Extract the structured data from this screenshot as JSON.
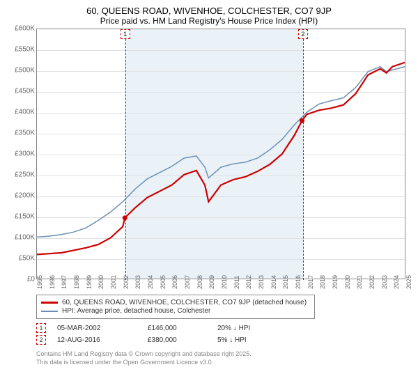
{
  "title": "60, QUEENS ROAD, WIVENHOE, COLCHESTER, CO7 9JP",
  "subtitle": "Price paid vs. HM Land Registry's House Price Index (HPI)",
  "chart": {
    "type": "line",
    "x_range": [
      1995,
      2025
    ],
    "y_range": [
      0,
      600000
    ],
    "y_tick_step": 50000,
    "y_ticks": [
      "£0",
      "£50K",
      "£100K",
      "£150K",
      "£200K",
      "£250K",
      "£300K",
      "£350K",
      "£400K",
      "£450K",
      "£500K",
      "£550K",
      "£600K"
    ],
    "x_ticks": [
      1995,
      1996,
      1997,
      1998,
      1999,
      2000,
      2001,
      2002,
      2003,
      2004,
      2005,
      2006,
      2007,
      2008,
      2009,
      2010,
      2011,
      2012,
      2013,
      2014,
      2015,
      2016,
      2017,
      2018,
      2019,
      2020,
      2021,
      2022,
      2023,
      2024,
      2025
    ],
    "shade_x": [
      2002.17,
      2016.62
    ],
    "background_color": "#ffffff",
    "grid_color": "#e0e0e0",
    "border_color": "#888888",
    "shade_color": "#eaf2f8",
    "series": [
      {
        "name": "property",
        "label": "60, QUEENS ROAD, WIVENHOE, COLCHESTER, CO7 9JP (detached house)",
        "color": "#cc0000",
        "width": 2.2,
        "data": [
          [
            1995,
            58000
          ],
          [
            1996,
            60000
          ],
          [
            1997,
            62000
          ],
          [
            1998,
            68000
          ],
          [
            1999,
            74000
          ],
          [
            2000,
            82000
          ],
          [
            2001,
            98000
          ],
          [
            2002,
            125000
          ],
          [
            2002.17,
            146000
          ],
          [
            2003,
            170000
          ],
          [
            2004,
            195000
          ],
          [
            2005,
            210000
          ],
          [
            2006,
            225000
          ],
          [
            2007,
            250000
          ],
          [
            2008,
            260000
          ],
          [
            2008.7,
            225000
          ],
          [
            2009,
            185000
          ],
          [
            2009.5,
            205000
          ],
          [
            2010,
            225000
          ],
          [
            2011,
            238000
          ],
          [
            2012,
            245000
          ],
          [
            2013,
            258000
          ],
          [
            2014,
            275000
          ],
          [
            2015,
            300000
          ],
          [
            2016,
            345000
          ],
          [
            2016.62,
            380000
          ],
          [
            2017,
            395000
          ],
          [
            2018,
            405000
          ],
          [
            2019,
            410000
          ],
          [
            2020,
            418000
          ],
          [
            2021,
            445000
          ],
          [
            2022,
            490000
          ],
          [
            2023,
            505000
          ],
          [
            2023.5,
            495000
          ],
          [
            2024,
            510000
          ],
          [
            2025,
            520000
          ]
        ]
      },
      {
        "name": "hpi",
        "label": "HPI: Average price, detached house, Colchester",
        "color": "#6b8fb5",
        "width": 1.5,
        "data": [
          [
            1995,
            100000
          ],
          [
            1996,
            102000
          ],
          [
            1997,
            106000
          ],
          [
            1998,
            112000
          ],
          [
            1999,
            122000
          ],
          [
            2000,
            140000
          ],
          [
            2001,
            160000
          ],
          [
            2002,
            185000
          ],
          [
            2003,
            215000
          ],
          [
            2004,
            240000
          ],
          [
            2005,
            255000
          ],
          [
            2006,
            270000
          ],
          [
            2007,
            290000
          ],
          [
            2008,
            295000
          ],
          [
            2008.7,
            268000
          ],
          [
            2009,
            242000
          ],
          [
            2009.5,
            255000
          ],
          [
            2010,
            268000
          ],
          [
            2011,
            276000
          ],
          [
            2012,
            280000
          ],
          [
            2013,
            290000
          ],
          [
            2014,
            310000
          ],
          [
            2015,
            335000
          ],
          [
            2016,
            370000
          ],
          [
            2017,
            400000
          ],
          [
            2018,
            420000
          ],
          [
            2019,
            428000
          ],
          [
            2020,
            435000
          ],
          [
            2021,
            460000
          ],
          [
            2022,
            498000
          ],
          [
            2023,
            510000
          ],
          [
            2023.5,
            498000
          ],
          [
            2024,
            502000
          ],
          [
            2025,
            510000
          ]
        ]
      }
    ],
    "markers": [
      {
        "label": "1",
        "x": 2002.17,
        "y_top": true,
        "date": "05-MAR-2002",
        "price": "£146,000",
        "delta": "20% ↓ HPI",
        "dot_y": 146000
      },
      {
        "label": "2",
        "x": 2016.62,
        "y_top": true,
        "date": "12-AUG-2016",
        "price": "£380,000",
        "delta": "5% ↓ HPI",
        "dot_y": 380000
      }
    ]
  },
  "footer": {
    "line1": "Contains HM Land Registry data © Crown copyright and database right 2025.",
    "line2": "This data is licensed under the Open Government Licence v3.0."
  }
}
